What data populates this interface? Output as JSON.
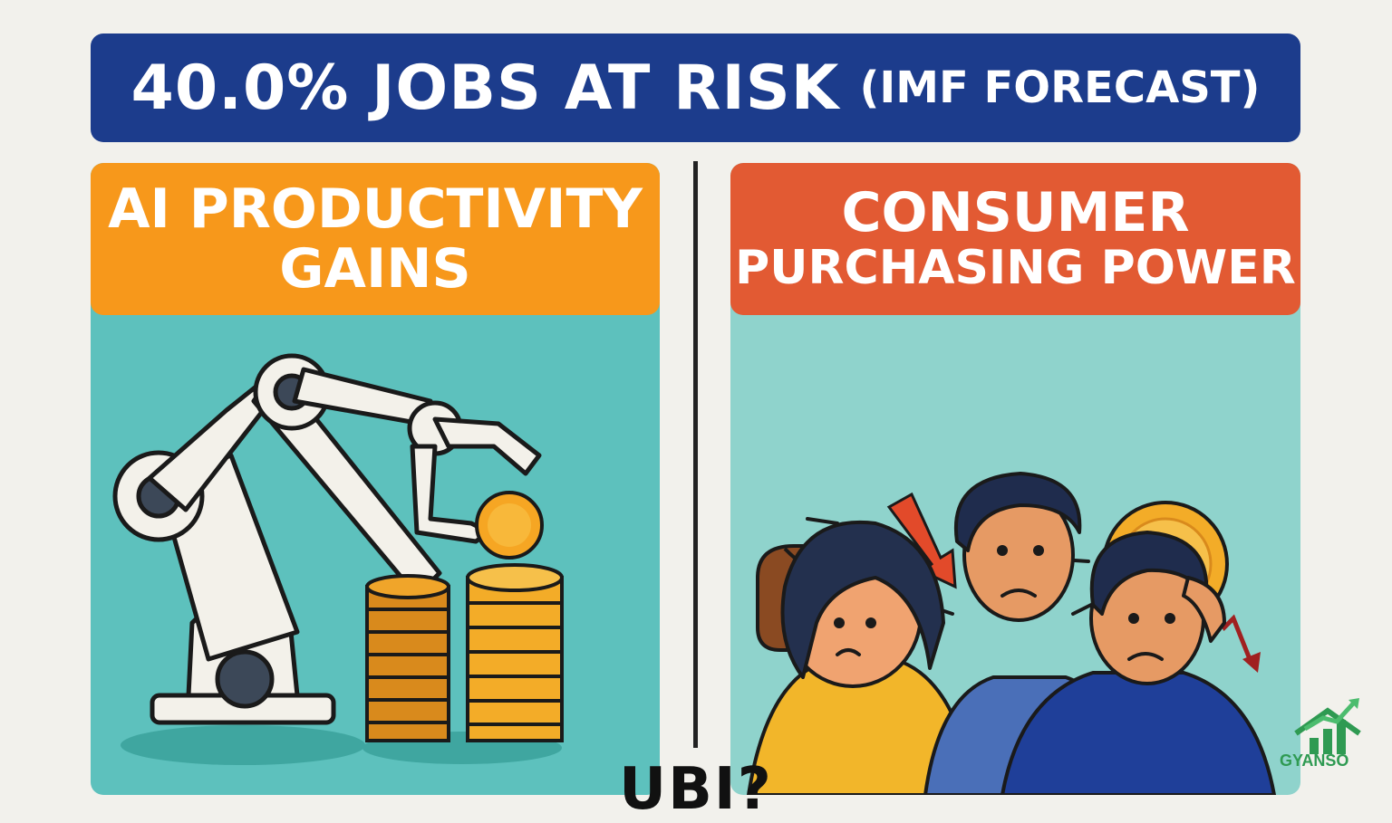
{
  "banner": {
    "main": "40.0% JOBS AT RISK",
    "sub": "(IMF FORECAST)"
  },
  "left_panel": {
    "title_line1": "AI PRODUCTIVITY",
    "title_line2": "GAINS"
  },
  "right_panel": {
    "title_line1": "CONSUMER",
    "title_line2": "PURCHASING POWER"
  },
  "bottom_question": "UBI?",
  "logo": {
    "text": "GYANSO"
  },
  "icons": [
    "robot-arm-icon",
    "coin-stack-icon",
    "wallet-icon",
    "down-arrow-icon",
    "dollar-coin-icon",
    "worried-people-icon"
  ],
  "colors": {
    "banner": "#1c3c8c",
    "left_header": "#f7981b",
    "right_header": "#e25a33",
    "left_bg": "#5dc1bd",
    "right_bg": "#8fd3cc"
  }
}
